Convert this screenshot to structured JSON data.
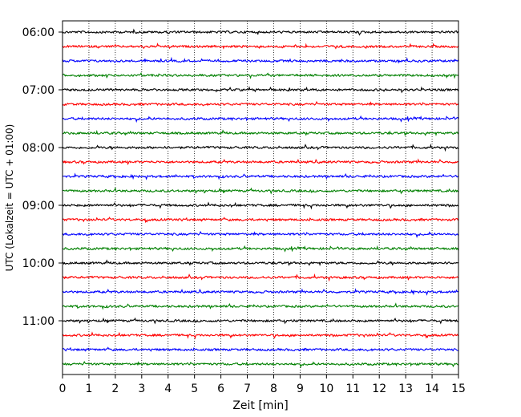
{
  "chart_data": {
    "type": "line",
    "title": "",
    "xlabel": "Zeit  [min]",
    "ylabel": "UTC (Lokalzeit = UTC + 01:00)",
    "xlim": [
      0,
      15
    ],
    "x_ticks": [
      0,
      1,
      2,
      3,
      4,
      5,
      6,
      7,
      8,
      9,
      10,
      11,
      12,
      13,
      14,
      15
    ],
    "x_tick_labels": [
      "0",
      "1",
      "2",
      "3",
      "4",
      "5",
      "6",
      "7",
      "8",
      "9",
      "10",
      "11",
      "12",
      "13",
      "14",
      "15"
    ],
    "y_tick_labels": [
      "06:00",
      "07:00",
      "08:00",
      "09:00",
      "10:00",
      "11:00"
    ],
    "grid": "vertical dotted at each minute",
    "trace_interval_min": 15,
    "trace_start": "06:00",
    "trace_colors": [
      "#000000",
      "#ff0000",
      "#0000ff",
      "#008000"
    ],
    "series": [
      {
        "label": "06:00",
        "color": "#000000"
      },
      {
        "label": "06:15",
        "color": "#ff0000"
      },
      {
        "label": "06:30",
        "color": "#0000ff"
      },
      {
        "label": "06:45",
        "color": "#008000"
      },
      {
        "label": "07:00",
        "color": "#000000"
      },
      {
        "label": "07:15",
        "color": "#ff0000"
      },
      {
        "label": "07:30",
        "color": "#0000ff"
      },
      {
        "label": "07:45",
        "color": "#008000"
      },
      {
        "label": "08:00",
        "color": "#000000"
      },
      {
        "label": "08:15",
        "color": "#ff0000"
      },
      {
        "label": "08:30",
        "color": "#0000ff"
      },
      {
        "label": "08:45",
        "color": "#008000"
      },
      {
        "label": "09:00",
        "color": "#000000"
      },
      {
        "label": "09:15",
        "color": "#ff0000"
      },
      {
        "label": "09:30",
        "color": "#0000ff"
      },
      {
        "label": "09:45",
        "color": "#008000"
      },
      {
        "label": "10:00",
        "color": "#000000"
      },
      {
        "label": "10:15",
        "color": "#ff0000"
      },
      {
        "label": "10:30",
        "color": "#0000ff"
      },
      {
        "label": "10:45",
        "color": "#008000"
      },
      {
        "label": "11:00",
        "color": "#000000"
      },
      {
        "label": "11:15",
        "color": "#ff0000"
      },
      {
        "label": "11:30",
        "color": "#0000ff"
      },
      {
        "label": "11:45",
        "color": "#008000"
      }
    ]
  }
}
